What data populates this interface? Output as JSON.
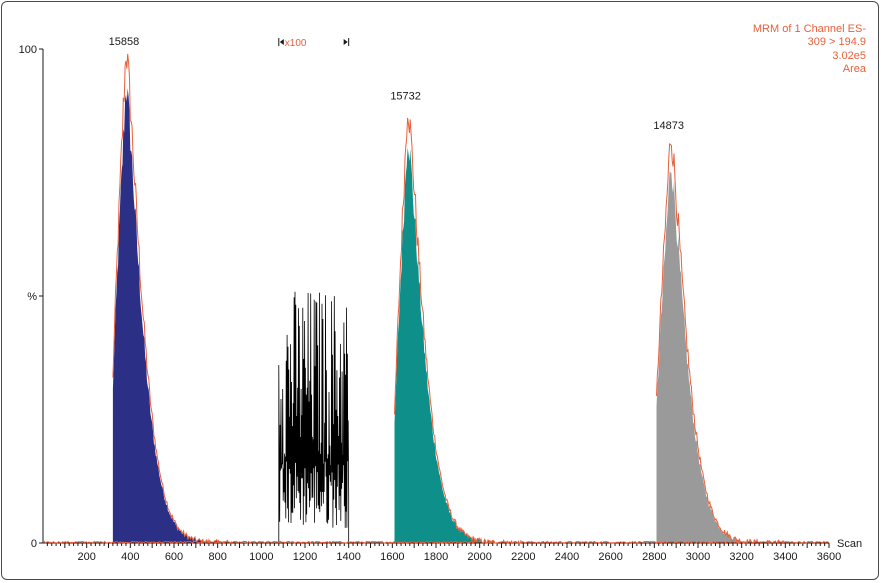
{
  "chart_data": {
    "type": "area",
    "xlabel": "Scan",
    "ylabel": "%",
    "xlim": [
      0,
      3600
    ],
    "ylim": [
      0,
      100
    ],
    "x_ticks": [
      200,
      400,
      600,
      800,
      1000,
      1200,
      1400,
      1600,
      1800,
      2000,
      2200,
      2400,
      2600,
      2800,
      3000,
      3200,
      3400,
      3600
    ],
    "y_ticks": [
      {
        "value": 100,
        "label": "100"
      },
      {
        "value": 50,
        "label": "%"
      },
      {
        "value": 0,
        "label": "0"
      }
    ],
    "info": [
      "MRM of 1 Channel ES-",
      "309 > 194.9",
      "3.02e5",
      "Area"
    ],
    "magnification": {
      "label": "x100",
      "x_start": 1080,
      "x_end": 1400
    },
    "outline_color": "#e8603c",
    "peaks": [
      {
        "label": "15858",
        "x_start": 320,
        "apex_x": 380,
        "apex_y": 100,
        "fill_start_y": 33,
        "fill_color": "#2b2f86"
      },
      {
        "label": "15732",
        "x_start": 1610,
        "apex_x": 1670,
        "apex_y": 89,
        "fill_start_y": 25,
        "fill_color": "#0e8f8a"
      },
      {
        "label": "14873",
        "x_start": 2810,
        "apex_x": 2875,
        "apex_y": 83,
        "fill_start_y": 29,
        "fill_color": "#9a9a9a"
      }
    ],
    "noise_region": {
      "x_start": 1080,
      "x_end": 1400,
      "y_min": 3,
      "y_max": 52,
      "color": "#000000"
    }
  }
}
